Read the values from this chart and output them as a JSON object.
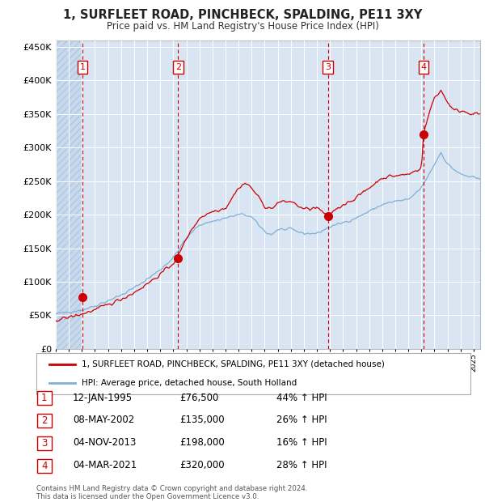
{
  "title": "1, SURFLEET ROAD, PINCHBECK, SPALDING, PE11 3XY",
  "subtitle": "Price paid vs. HM Land Registry's House Price Index (HPI)",
  "ylim": [
    0,
    460000
  ],
  "yticks": [
    0,
    50000,
    100000,
    150000,
    200000,
    250000,
    300000,
    350000,
    400000,
    450000
  ],
  "background_color": "#ffffff",
  "plot_bg_color": "#d9e5f3",
  "hatch_region_end": 1995.0,
  "sale_years": [
    1995.04,
    2002.37,
    2013.84,
    2021.17
  ],
  "sale_prices": [
    76500,
    135000,
    198000,
    320000
  ],
  "sale_labels": [
    "1",
    "2",
    "3",
    "4"
  ],
  "sale_hpi_pct": [
    "44% ↑ HPI",
    "26% ↑ HPI",
    "16% ↑ HPI",
    "28% ↑ HPI"
  ],
  "sale_date_labels": [
    "12-JAN-1995",
    "08-MAY-2002",
    "04-NOV-2013",
    "04-MAR-2021"
  ],
  "sale_price_labels": [
    "£76,500",
    "£135,000",
    "£198,000",
    "£320,000"
  ],
  "legend_property": "1, SURFLEET ROAD, PINCHBECK, SPALDING, PE11 3XY (detached house)",
  "legend_hpi": "HPI: Average price, detached house, South Holland",
  "footer": "Contains HM Land Registry data © Crown copyright and database right 2024.\nThis data is licensed under the Open Government Licence v3.0.",
  "property_color": "#cc0000",
  "hpi_color": "#7fafd4",
  "vline_color": "#cc0000",
  "xlim_start": 1993.0,
  "xlim_end": 2025.5
}
